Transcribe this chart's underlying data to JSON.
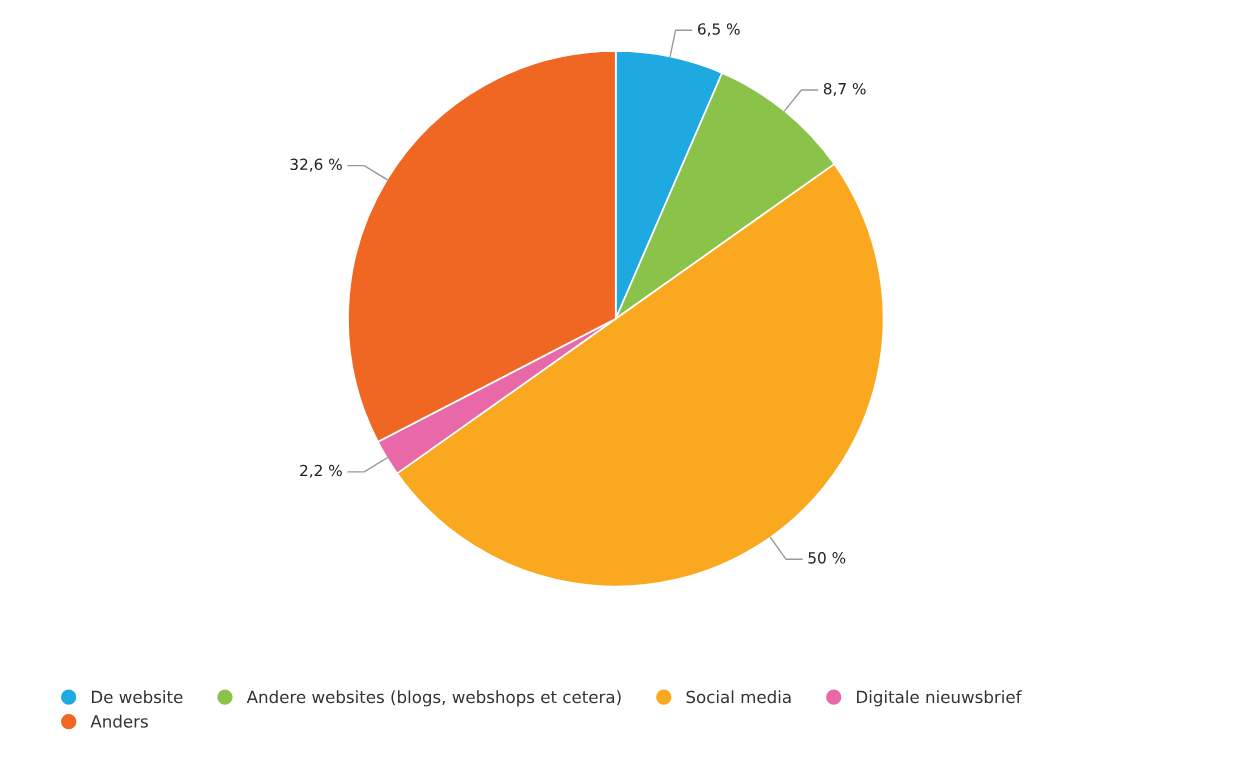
{
  "chart_data": {
    "type": "pie",
    "categories": [
      "De website",
      "Andere websites (blogs, webshops et cetera)",
      "Social media",
      "Digitale nieuwsbrief",
      "Anders"
    ],
    "values": [
      6.5,
      8.7,
      50,
      2.2,
      32.6
    ],
    "value_labels": [
      "6,5 %",
      "8,7 %",
      "50 %",
      "2,2 %",
      "32,6 %"
    ],
    "colors": [
      "#1fa9e1",
      "#8bc34a",
      "#faa820",
      "#e868a8",
      "#f06724"
    ],
    "legend": "bottom"
  }
}
